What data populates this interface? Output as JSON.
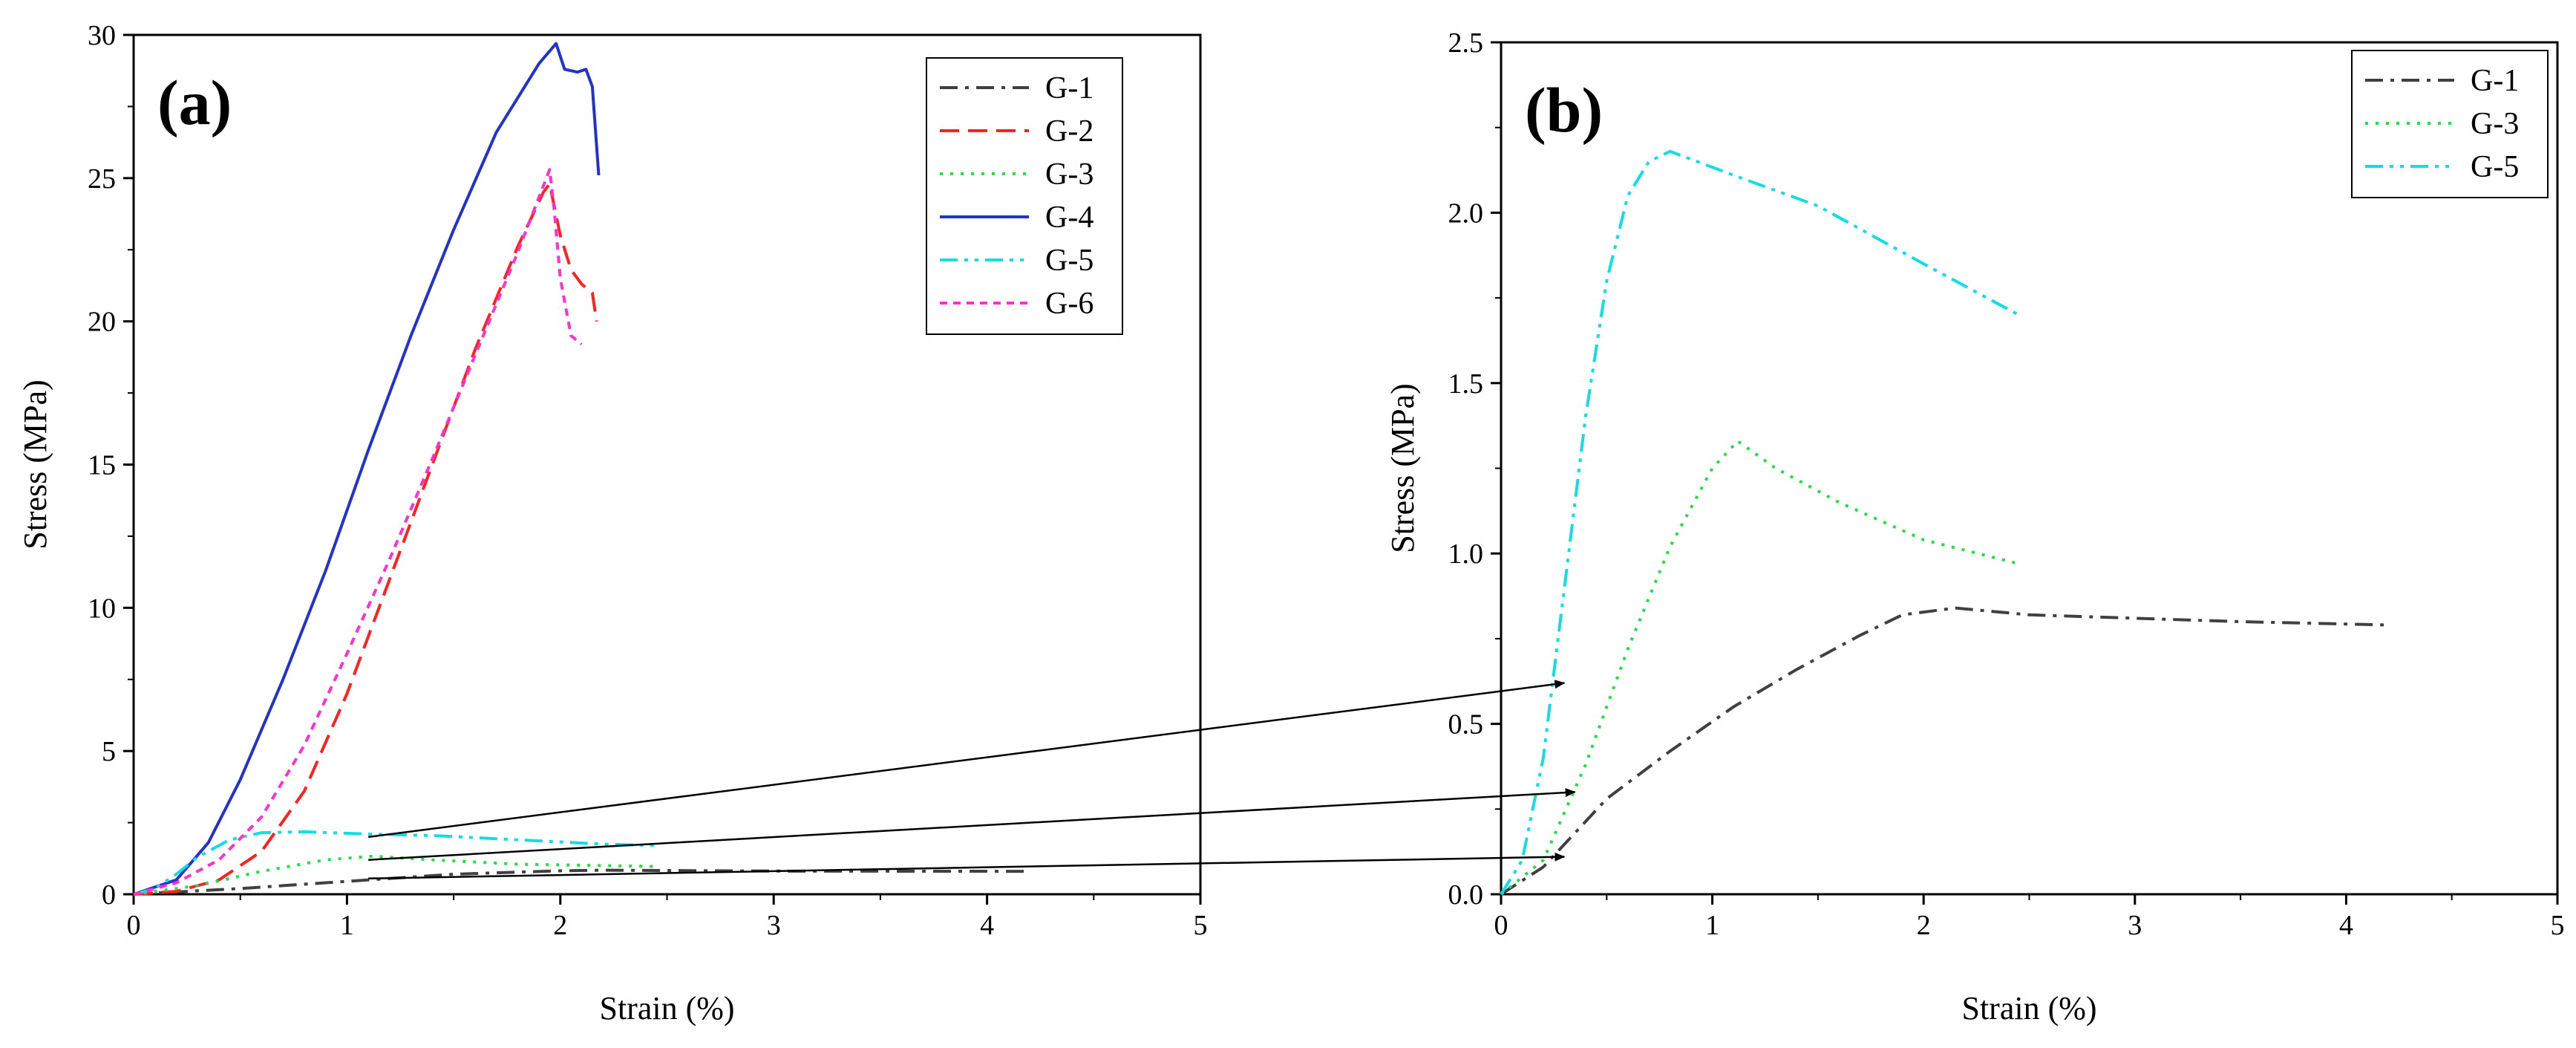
{
  "colors": {
    "G-1": "#404040",
    "G-2": "#ff2020",
    "G-3": "#22e040",
    "G-4": "#2233cc",
    "G-5": "#11dde8",
    "G-6": "#ff30d0"
  },
  "chart_data": [
    {
      "id": "a",
      "type": "line",
      "panel_label": "(a)",
      "xlabel": "Strain (%)",
      "ylabel": "Stress (MPa)",
      "xlim": [
        0,
        5
      ],
      "ylim": [
        0,
        30
      ],
      "xticks": [
        0,
        1,
        2,
        3,
        4,
        5
      ],
      "yticks": [
        0,
        5,
        10,
        15,
        20,
        25,
        30
      ],
      "legend": [
        "G-1",
        "G-2",
        "G-3",
        "G-4",
        "G-5",
        "G-6"
      ],
      "series": [
        {
          "name": "G-1",
          "style": "dashdot",
          "points": [
            [
              0,
              0
            ],
            [
              0.5,
              0.2
            ],
            [
              1,
              0.45
            ],
            [
              1.5,
              0.7
            ],
            [
              2,
              0.82
            ],
            [
              2.2,
              0.84
            ],
            [
              3,
              0.81
            ],
            [
              4.2,
              0.8
            ]
          ]
        },
        {
          "name": "G-2",
          "style": "dash",
          "points": [
            [
              0,
              0
            ],
            [
              0.2,
              0.1
            ],
            [
              0.4,
              0.5
            ],
            [
              0.6,
              1.5
            ],
            [
              0.8,
              3.6
            ],
            [
              1,
              7
            ],
            [
              1.2,
              11
            ],
            [
              1.4,
              15
            ],
            [
              1.6,
              19
            ],
            [
              1.8,
              22.6
            ],
            [
              1.92,
              24.5
            ],
            [
              1.95,
              24.8
            ],
            [
              2,
              23
            ],
            [
              2.05,
              21.8
            ],
            [
              2.1,
              21.3
            ],
            [
              2.15,
              21
            ],
            [
              2.17,
              20
            ]
          ]
        },
        {
          "name": "G-3",
          "style": "dot",
          "points": [
            [
              0,
              0
            ],
            [
              0.3,
              0.3
            ],
            [
              0.6,
              0.8
            ],
            [
              0.9,
              1.2
            ],
            [
              1.12,
              1.33
            ],
            [
              1.4,
              1.2
            ],
            [
              1.8,
              1.05
            ],
            [
              2.2,
              1.0
            ],
            [
              2.45,
              0.97
            ]
          ]
        },
        {
          "name": "G-4",
          "style": "solid",
          "points": [
            [
              0,
              0
            ],
            [
              0.2,
              0.5
            ],
            [
              0.35,
              1.8
            ],
            [
              0.5,
              4
            ],
            [
              0.7,
              7.5
            ],
            [
              0.9,
              11.3
            ],
            [
              1.1,
              15.5
            ],
            [
              1.3,
              19.5
            ],
            [
              1.5,
              23.2
            ],
            [
              1.7,
              26.6
            ],
            [
              1.9,
              29
            ],
            [
              1.98,
              29.7
            ],
            [
              2.02,
              28.8
            ],
            [
              2.08,
              28.7
            ],
            [
              2.12,
              28.8
            ],
            [
              2.15,
              28.2
            ],
            [
              2.18,
              25.1
            ]
          ]
        },
        {
          "name": "G-5",
          "style": "dashdotdot",
          "points": [
            [
              0,
              0
            ],
            [
              0.1,
              0.2
            ],
            [
              0.2,
              0.7
            ],
            [
              0.3,
              1.3
            ],
            [
              0.45,
              1.9
            ],
            [
              0.6,
              2.15
            ],
            [
              0.8,
              2.18
            ],
            [
              1.1,
              2.1
            ],
            [
              1.4,
              2.05
            ],
            [
              1.8,
              1.9
            ],
            [
              2.2,
              1.75
            ],
            [
              2.45,
              1.7
            ]
          ]
        },
        {
          "name": "G-6",
          "style": "shortdash",
          "points": [
            [
              0,
              0
            ],
            [
              0.2,
              0.4
            ],
            [
              0.4,
              1.2
            ],
            [
              0.6,
              2.7
            ],
            [
              0.8,
              5.2
            ],
            [
              1,
              8.4
            ],
            [
              1.2,
              11.7
            ],
            [
              1.4,
              15.2
            ],
            [
              1.6,
              18.8
            ],
            [
              1.8,
              22.4
            ],
            [
              1.95,
              25.3
            ],
            [
              1.97,
              24
            ],
            [
              2,
              21.5
            ],
            [
              2.05,
              19.5
            ],
            [
              2.1,
              19.2
            ]
          ]
        }
      ]
    },
    {
      "id": "b",
      "type": "line",
      "panel_label": "(b)",
      "xlabel": "Strain (%)",
      "ylabel": "Stress (MPa)",
      "xlim": [
        0,
        5
      ],
      "ylim": [
        0,
        2.5
      ],
      "xticks": [
        0,
        1,
        2,
        3,
        4,
        5
      ],
      "yticks": [
        0,
        0.5,
        1.0,
        1.5,
        2.0,
        2.5
      ],
      "legend": [
        "G-1",
        "G-3",
        "G-5"
      ],
      "series": [
        {
          "name": "G-1",
          "style": "dashdot",
          "points": [
            [
              0,
              0
            ],
            [
              0.2,
              0.08
            ],
            [
              0.5,
              0.28
            ],
            [
              0.8,
              0.42
            ],
            [
              1.1,
              0.55
            ],
            [
              1.4,
              0.66
            ],
            [
              1.7,
              0.76
            ],
            [
              1.9,
              0.82
            ],
            [
              2.15,
              0.84
            ],
            [
              2.5,
              0.82
            ],
            [
              3,
              0.81
            ],
            [
              3.5,
              0.8
            ],
            [
              4.2,
              0.79
            ]
          ]
        },
        {
          "name": "G-3",
          "style": "dot",
          "points": [
            [
              0,
              0
            ],
            [
              0.2,
              0.1
            ],
            [
              0.4,
              0.38
            ],
            [
              0.6,
              0.72
            ],
            [
              0.8,
              1.02
            ],
            [
              1,
              1.25
            ],
            [
              1.12,
              1.33
            ],
            [
              1.3,
              1.25
            ],
            [
              1.6,
              1.15
            ],
            [
              2,
              1.04
            ],
            [
              2.45,
              0.97
            ]
          ]
        },
        {
          "name": "G-5",
          "style": "dashdotdot",
          "points": [
            [
              0,
              0
            ],
            [
              0.1,
              0.1
            ],
            [
              0.2,
              0.4
            ],
            [
              0.3,
              0.9
            ],
            [
              0.4,
              1.4
            ],
            [
              0.5,
              1.8
            ],
            [
              0.6,
              2.05
            ],
            [
              0.7,
              2.15
            ],
            [
              0.8,
              2.18
            ],
            [
              1.1,
              2.11
            ],
            [
              1.5,
              2.02
            ],
            [
              2,
              1.85
            ],
            [
              2.45,
              1.7
            ]
          ]
        }
      ],
      "annotation_arrows": [
        {
          "from_series": "G-5",
          "from": [
            1.1,
            2.0
          ],
          "to": [
            0.3,
            0.62
          ]
        },
        {
          "from_series": "G-3",
          "from": [
            1.1,
            1.2
          ],
          "to": [
            0.35,
            0.3
          ]
        },
        {
          "from_series": "G-1",
          "from": [
            1.1,
            0.55
          ],
          "to": [
            0.3,
            0.11
          ]
        }
      ]
    }
  ]
}
